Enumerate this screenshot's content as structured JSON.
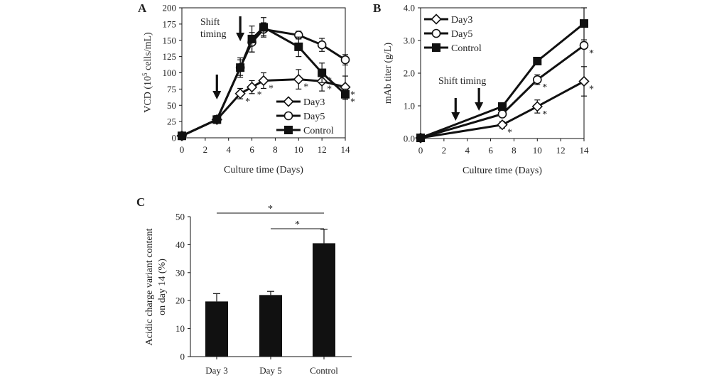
{
  "chart_data": [
    {
      "panel": "A",
      "type": "line",
      "xlabel": "Culture time (Days)",
      "ylabel_parts": [
        "VCD (10",
        "5",
        " cells/mL)"
      ],
      "xlim": [
        0,
        14
      ],
      "ylim": [
        0,
        200
      ],
      "xticks": [
        0,
        2,
        4,
        6,
        8,
        10,
        12,
        14
      ],
      "yticks": [
        0,
        25,
        50,
        75,
        100,
        125,
        150,
        175,
        200
      ],
      "series": [
        {
          "name": "Day3",
          "marker": "diamond",
          "x": [
            0,
            3,
            5,
            6,
            7,
            10,
            12,
            14
          ],
          "y": [
            3,
            28,
            68,
            78,
            88,
            90,
            87,
            78
          ],
          "err": [
            2,
            6,
            8,
            10,
            12,
            15,
            15,
            17
          ],
          "stars": [
            false,
            false,
            true,
            true,
            true,
            true,
            true,
            true
          ]
        },
        {
          "name": "Day5",
          "marker": "circle",
          "x": [
            0,
            3,
            5,
            6,
            7,
            10,
            12,
            14
          ],
          "y": [
            3,
            28,
            108,
            147,
            167,
            158,
            143,
            120
          ],
          "err": [
            2,
            6,
            12,
            15,
            10,
            6,
            10,
            8
          ],
          "stars": [
            false,
            false,
            false,
            false,
            false,
            false,
            false,
            false
          ]
        },
        {
          "name": "Control",
          "marker": "square",
          "x": [
            0,
            3,
            5,
            6,
            7,
            10,
            12,
            14
          ],
          "y": [
            3,
            28,
            108,
            152,
            170,
            140,
            100,
            67
          ],
          "err": [
            2,
            6,
            15,
            20,
            15,
            15,
            15,
            8
          ],
          "stars": [
            false,
            false,
            false,
            false,
            false,
            false,
            true,
            true
          ]
        }
      ],
      "annotations": {
        "shift_line1": "Shift",
        "shift_line2": "timing",
        "arrow_days": [
          3,
          5
        ]
      },
      "star_label": "*"
    },
    {
      "panel": "B",
      "type": "line",
      "xlabel": "Culture time (Days)",
      "ylabel": "mAb titer (g/L)",
      "xlim": [
        0,
        14
      ],
      "ylim": [
        0,
        4
      ],
      "xticks": [
        0,
        2,
        4,
        6,
        8,
        10,
        12,
        14
      ],
      "yticks": [
        "0.0",
        "1.0",
        "2.0",
        "3.0",
        "4.0"
      ],
      "series": [
        {
          "name": "Day3",
          "marker": "diamond",
          "x": [
            0,
            7,
            10,
            14
          ],
          "y": [
            0.02,
            0.42,
            0.98,
            1.75
          ],
          "err": [
            0.02,
            0.1,
            0.2,
            0.45
          ],
          "stars": [
            false,
            true,
            true,
            true
          ]
        },
        {
          "name": "Day5",
          "marker": "circle",
          "x": [
            0,
            7,
            10,
            14
          ],
          "y": [
            0.02,
            0.75,
            1.8,
            2.85
          ],
          "err": [
            0.02,
            0.1,
            0.15,
            0.1
          ],
          "stars": [
            false,
            false,
            true,
            true
          ]
        },
        {
          "name": "Control",
          "marker": "square",
          "x": [
            0,
            7,
            10,
            14
          ],
          "y": [
            0.02,
            0.98,
            2.37,
            3.52
          ],
          "err": [
            0.02,
            0.1,
            0.1,
            0.5
          ],
          "stars": [
            false,
            false,
            false,
            false
          ]
        }
      ],
      "annotations": {
        "shift_text": "Shift timing",
        "arrow_days": [
          3,
          5
        ]
      },
      "star_label": "*"
    },
    {
      "panel": "C",
      "type": "bar",
      "categories": [
        "Day 3",
        "Day 5",
        "Control"
      ],
      "values": [
        19.7,
        22.0,
        40.5
      ],
      "err": [
        2.8,
        1.3,
        5.0
      ],
      "ylabel_line1": "Acidic charge variant content",
      "ylabel_line2": "on day 14 (%)",
      "ylim": [
        0,
        50
      ],
      "yticks": [
        0,
        10,
        20,
        30,
        40,
        50
      ],
      "significance": [
        {
          "from": "Day 3",
          "to": "Control",
          "label": "*"
        },
        {
          "from": "Day 5",
          "to": "Control",
          "label": "*"
        }
      ]
    }
  ]
}
